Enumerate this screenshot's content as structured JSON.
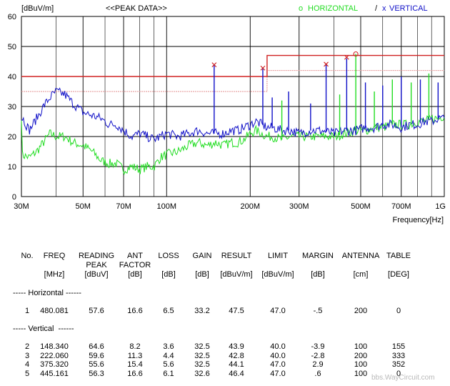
{
  "chart_data": {
    "type": "line",
    "ylabel": "[dBuV/m]",
    "title": "<<PEAK DATA>>",
    "xlabel": "Frequency[Hz]",
    "xscale": "log",
    "xlim": [
      30,
      1000
    ],
    "ylim": [
      0,
      60
    ],
    "x_ticks": [
      {
        "v": 30,
        "label": "30M"
      },
      {
        "v": 50,
        "label": "50M"
      },
      {
        "v": 70,
        "label": "70M"
      },
      {
        "v": 100,
        "label": "100M"
      },
      {
        "v": 200,
        "label": "200M"
      },
      {
        "v": 300,
        "label": "300M"
      },
      {
        "v": 500,
        "label": "500M"
      },
      {
        "v": 700,
        "label": "700M"
      },
      {
        "v": 1000,
        "label": "1G"
      }
    ],
    "y_ticks": [
      0,
      10,
      20,
      30,
      40,
      50,
      60
    ],
    "grid": true,
    "legend": {
      "horizontal": {
        "symbol": "o",
        "label": "HORIZONTAL",
        "color": "#22dd22"
      },
      "separator": "/",
      "vertical": {
        "symbol": "x",
        "label": "VERTICAL",
        "color": "#1010c8"
      }
    },
    "limit_color": "#d02020",
    "limit_line": {
      "x": [
        30,
        230,
        230,
        1000
      ],
      "y": [
        40,
        40,
        47,
        47
      ]
    },
    "margin_line": {
      "x": [
        30,
        230,
        230,
        1000
      ],
      "y": [
        35,
        35,
        42,
        42
      ]
    },
    "series": [
      {
        "name": "HORIZONTAL",
        "color": "#22dd22",
        "x": [
          30,
          32,
          34,
          36,
          38,
          40,
          43,
          46,
          50,
          54,
          58,
          62,
          66,
          70,
          75,
          80,
          85,
          90,
          95,
          100,
          110,
          120,
          130,
          140,
          150,
          160,
          170,
          180,
          190,
          200,
          210,
          220,
          230,
          240,
          260,
          280,
          300,
          330,
          360,
          400,
          440,
          480,
          520,
          560,
          600,
          650,
          700,
          750,
          800,
          850,
          900,
          950,
          1000
        ],
        "y": [
          14,
          13,
          15,
          18,
          21,
          20,
          20,
          18,
          17,
          15,
          12,
          11,
          11,
          9,
          10,
          9,
          10,
          10,
          13,
          14,
          15,
          17,
          18,
          17,
          18,
          17,
          18,
          18,
          19,
          21,
          22,
          21,
          20,
          20,
          19,
          20,
          20,
          20,
          20,
          20,
          21,
          22,
          22,
          23,
          23,
          24,
          24,
          24,
          25,
          25,
          26,
          26,
          27
        ]
      },
      {
        "name": "VERTICAL",
        "color": "#1010c8",
        "x": [
          30,
          32,
          34,
          36,
          38,
          40,
          43,
          46,
          50,
          54,
          58,
          62,
          66,
          70,
          75,
          80,
          85,
          90,
          95,
          100,
          110,
          120,
          130,
          140,
          150,
          160,
          170,
          180,
          190,
          200,
          210,
          220,
          230,
          240,
          260,
          280,
          300,
          330,
          360,
          400,
          440,
          480,
          520,
          560,
          600,
          650,
          700,
          750,
          800,
          850,
          900,
          950,
          1000
        ],
        "y": [
          27,
          22,
          26,
          30,
          33,
          35,
          34,
          31,
          28,
          27,
          26,
          24,
          24,
          22,
          20,
          21,
          20,
          19,
          20,
          21,
          20,
          21,
          22,
          21,
          21,
          21,
          22,
          22,
          23,
          24,
          25,
          24,
          23,
          23,
          22,
          22,
          21,
          22,
          22,
          21,
          22,
          22,
          23,
          23,
          24,
          24,
          23,
          24,
          24,
          25,
          25,
          26,
          26
        ]
      }
    ],
    "spikes": [
      {
        "x": 148.34,
        "y": 44,
        "series": "VERTICAL"
      },
      {
        "x": 222.06,
        "y": 43,
        "series": "VERTICAL"
      },
      {
        "x": 240,
        "y": 33,
        "series": "VERTICAL"
      },
      {
        "x": 260,
        "y": 32,
        "series": "HORIZONTAL"
      },
      {
        "x": 275,
        "y": 35,
        "series": "VERTICAL"
      },
      {
        "x": 330,
        "y": 31,
        "series": "VERTICAL"
      },
      {
        "x": 375.32,
        "y": 44,
        "series": "VERTICAL"
      },
      {
        "x": 420,
        "y": 34,
        "series": "HORIZONTAL"
      },
      {
        "x": 445.16,
        "y": 46,
        "series": "VERTICAL"
      },
      {
        "x": 480.08,
        "y": 47.5,
        "series": "HORIZONTAL"
      },
      {
        "x": 520,
        "y": 38,
        "series": "VERTICAL"
      },
      {
        "x": 560,
        "y": 35,
        "series": "HORIZONTAL"
      },
      {
        "x": 600,
        "y": 37,
        "series": "VERTICAL"
      },
      {
        "x": 650,
        "y": 39,
        "series": "HORIZONTAL"
      },
      {
        "x": 700,
        "y": 40,
        "series": "VERTICAL"
      },
      {
        "x": 760,
        "y": 38,
        "series": "HORIZONTAL"
      },
      {
        "x": 820,
        "y": 39,
        "series": "VERTICAL"
      },
      {
        "x": 880,
        "y": 41,
        "series": "HORIZONTAL"
      },
      {
        "x": 950,
        "y": 38,
        "series": "VERTICAL"
      }
    ],
    "markers": [
      {
        "x": 148.34,
        "y": 43.9,
        "symbol": "x",
        "series": "VERTICAL"
      },
      {
        "x": 222.06,
        "y": 42.8,
        "symbol": "x",
        "series": "VERTICAL"
      },
      {
        "x": 375.32,
        "y": 44.1,
        "symbol": "x",
        "series": "VERTICAL"
      },
      {
        "x": 445.161,
        "y": 46.4,
        "symbol": "x",
        "series": "VERTICAL"
      },
      {
        "x": 480.081,
        "y": 47.5,
        "symbol": "o",
        "series": "HORIZONTAL"
      }
    ]
  },
  "table": {
    "headers": [
      {
        "l1": "No.",
        "l2": "",
        "l3": ""
      },
      {
        "l1": "FREQ",
        "l2": "",
        "l3": "[MHz]"
      },
      {
        "l1": "READING",
        "l2": "PEAK",
        "l3": "[dBuV]"
      },
      {
        "l1": "ANT",
        "l2": "FACTOR",
        "l3": "[dB]"
      },
      {
        "l1": "LOSS",
        "l2": "",
        "l3": "[dB]"
      },
      {
        "l1": "GAIN",
        "l2": "",
        "l3": "[dB]"
      },
      {
        "l1": "RESULT",
        "l2": "",
        "l3": "[dBuV/m]"
      },
      {
        "l1": "LIMIT",
        "l2": "",
        "l3": "[dBuV/m]"
      },
      {
        "l1": "MARGIN",
        "l2": "",
        "l3": "[dB]"
      },
      {
        "l1": "ANTENNA",
        "l2": "",
        "l3": "[cm]"
      },
      {
        "l1": "TABLE",
        "l2": "",
        "l3": "[DEG]"
      }
    ],
    "horizontal_label": "----- Horizontal ------",
    "horizontal_rows": [
      [
        "1",
        "480.081",
        "57.6",
        "16.6",
        "6.5",
        "33.2",
        "47.5",
        "47.0",
        "-.5",
        "200",
        "0"
      ]
    ],
    "vertical_label": "----- Vertical  ------",
    "vertical_rows": [
      [
        "2",
        "148.340",
        "64.6",
        "8.2",
        "3.6",
        "32.5",
        "43.9",
        "40.0",
        "-3.9",
        "100",
        "155"
      ],
      [
        "3",
        "222.060",
        "59.6",
        "11.3",
        "4.4",
        "32.5",
        "42.8",
        "40.0",
        "-2.8",
        "200",
        "333"
      ],
      [
        "4",
        "375.320",
        "55.6",
        "15.4",
        "5.6",
        "32.5",
        "44.1",
        "47.0",
        "2.9",
        "100",
        "352"
      ],
      [
        "5",
        "445.161",
        "56.3",
        "16.6",
        "6.1",
        "32.6",
        "46.4",
        "47.0",
        ".6",
        "100",
        "0"
      ]
    ]
  },
  "watermark": "bbs.WayCircuit.com"
}
